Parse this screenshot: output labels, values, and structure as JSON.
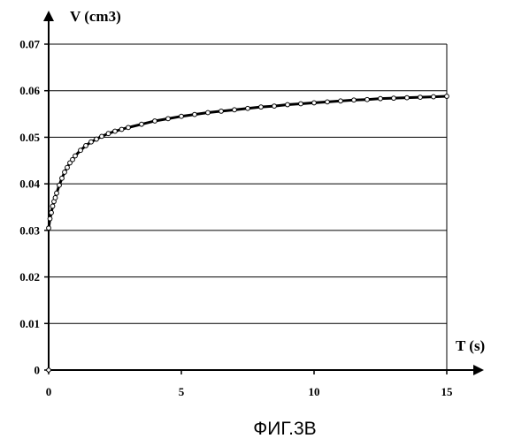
{
  "caption": "ФИГ.3B",
  "chart_data": {
    "type": "scatter",
    "title": "",
    "xlabel": "T (s)",
    "ylabel": "V (cm3)",
    "xlim": [
      0,
      15
    ],
    "ylim": [
      0,
      0.07
    ],
    "x_ticks": [
      0,
      5,
      10,
      15
    ],
    "y_ticks": [
      0,
      0.01,
      0.02,
      0.03,
      0.04,
      0.05,
      0.06,
      0.07
    ],
    "x_tick_labels": [
      "0",
      "5",
      "10",
      "15"
    ],
    "y_tick_labels": [
      "0",
      "0.01",
      "0.02",
      "0.03",
      "0.04",
      "0.05",
      "0.06",
      "0.07"
    ],
    "grid": "horizontal",
    "legend": "none",
    "colors": {
      "series": "#000000",
      "grid": "#000000",
      "background": "#ffffff"
    },
    "series": [
      {
        "style": "markers-with-fitted-line",
        "x": [
          0,
          0.05,
          0.1,
          0.15,
          0.2,
          0.25,
          0.3,
          0.4,
          0.5,
          0.6,
          0.7,
          0.8,
          0.9,
          1.0,
          1.2,
          1.4,
          1.6,
          1.8,
          2.0,
          2.25,
          2.5,
          2.75,
          3.0,
          3.5,
          4.0,
          4.5,
          5.0,
          5.5,
          6.0,
          6.5,
          7.0,
          7.5,
          8.0,
          8.5,
          9.0,
          9.5,
          10.0,
          10.5,
          11.0,
          11.5,
          12.0,
          12.5,
          13.0,
          13.5,
          14.0,
          14.5,
          15.0
        ],
        "y": [
          0.0305,
          0.0325,
          0.0338,
          0.0352,
          0.0362,
          0.037,
          0.038,
          0.0397,
          0.0412,
          0.0425,
          0.0435,
          0.0445,
          0.0452,
          0.046,
          0.0472,
          0.0482,
          0.049,
          0.0496,
          0.0502,
          0.0508,
          0.0513,
          0.0517,
          0.0521,
          0.0528,
          0.0535,
          0.054,
          0.0545,
          0.0549,
          0.0553,
          0.0556,
          0.0559,
          0.0562,
          0.0565,
          0.0567,
          0.057,
          0.0572,
          0.0574,
          0.0576,
          0.0578,
          0.058,
          0.0581,
          0.0583,
          0.0584,
          0.0585,
          0.0586,
          0.0587,
          0.0588
        ]
      }
    ]
  }
}
